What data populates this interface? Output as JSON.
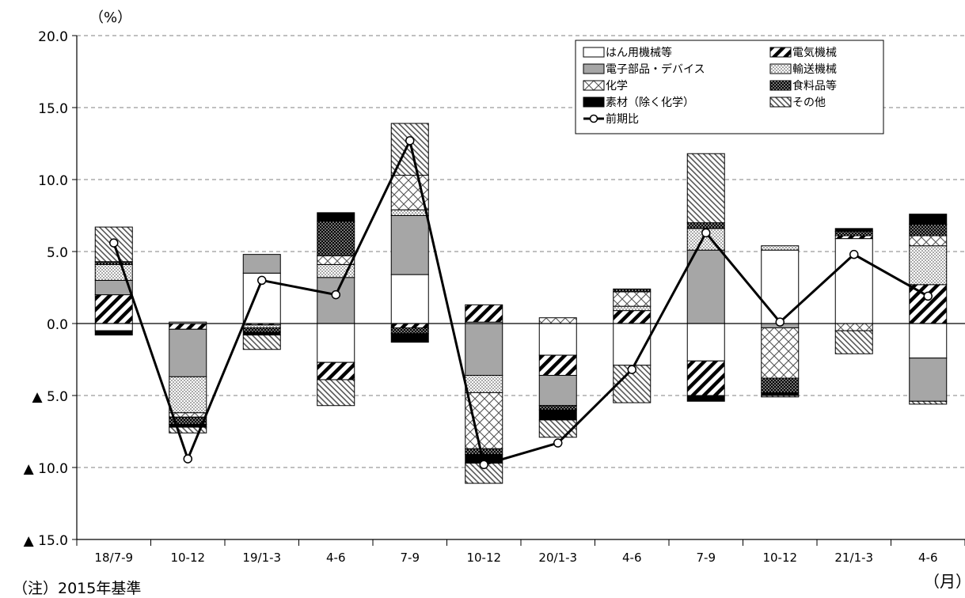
{
  "note": "（注）2015年基準",
  "chart_data": {
    "type": "bar",
    "stacked": true,
    "y_unit_label": "（%）",
    "x_unit_label": "（月）",
    "ylim": [
      -15,
      20
    ],
    "yticks": [
      20,
      15,
      10,
      5,
      0,
      -5,
      -10,
      -15
    ],
    "ytick_labels": [
      "20.0",
      "15.0",
      "10.0",
      "5.0",
      "0.0",
      "▲ 5.0",
      "▲ 10.0",
      "▲ 15.0"
    ],
    "grid": "dashed horizontal",
    "legend_position": "top-right",
    "categories": [
      "18/7-9",
      "10-12",
      "19/1-3",
      "4-6",
      "7-9",
      "10-12",
      "20/1-3",
      "4-6",
      "7-9",
      "10-12",
      "21/1-3",
      "4-6"
    ],
    "series": [
      {
        "name": "はん用機械等",
        "pattern": "white",
        "values": [
          -0.5,
          0.1,
          3.5,
          -2.7,
          3.4,
          0.1,
          -2.2,
          -2.9,
          -2.6,
          5.1,
          5.9,
          -2.4
        ]
      },
      {
        "name": "電気機械",
        "pattern": "hatch-bold",
        "values": [
          2.0,
          -0.4,
          -0.1,
          -1.2,
          -0.3,
          1.2,
          -1.4,
          0.9,
          -2.4,
          0.0,
          0.2,
          2.7
        ]
      },
      {
        "name": "電子部品・デバイス",
        "pattern": "gray",
        "values": [
          1.0,
          -3.3,
          1.3,
          3.2,
          4.1,
          -3.6,
          -2.1,
          0.0,
          5.1,
          -0.3,
          0.0,
          -3.0
        ]
      },
      {
        "name": "輸送機械",
        "pattern": "dots",
        "values": [
          1.1,
          -2.5,
          -0.2,
          0.9,
          0.4,
          -1.2,
          0.0,
          0.3,
          1.5,
          0.3,
          0.0,
          2.7
        ]
      },
      {
        "name": "化学",
        "pattern": "cross",
        "values": [
          0.0,
          -0.3,
          0.0,
          0.6,
          2.4,
          -3.9,
          0.4,
          1.0,
          0.0,
          -3.5,
          -0.5,
          0.7
        ]
      },
      {
        "name": "食料品等",
        "pattern": "dots-dark",
        "values": [
          0.2,
          -0.5,
          -0.3,
          2.4,
          -0.4,
          -0.4,
          -0.3,
          0.2,
          0.4,
          -1.0,
          0.3,
          0.8
        ]
      },
      {
        "name": "素材（除く化学）",
        "pattern": "black",
        "values": [
          -0.3,
          -0.2,
          -0.2,
          0.6,
          -0.6,
          -0.6,
          -0.7,
          0.0,
          -0.4,
          -0.2,
          0.2,
          0.7
        ]
      },
      {
        "name": "その他",
        "pattern": "hatch-fine",
        "values": [
          2.4,
          -0.4,
          -1.0,
          -1.8,
          3.6,
          -1.4,
          -1.2,
          -2.6,
          4.8,
          -0.1,
          -1.6,
          -0.2
        ]
      }
    ],
    "line": {
      "name": "前期比",
      "values": [
        5.6,
        -9.4,
        3.0,
        2.0,
        12.7,
        -9.8,
        -8.3,
        -3.2,
        6.3,
        0.1,
        4.8,
        1.9
      ]
    }
  }
}
